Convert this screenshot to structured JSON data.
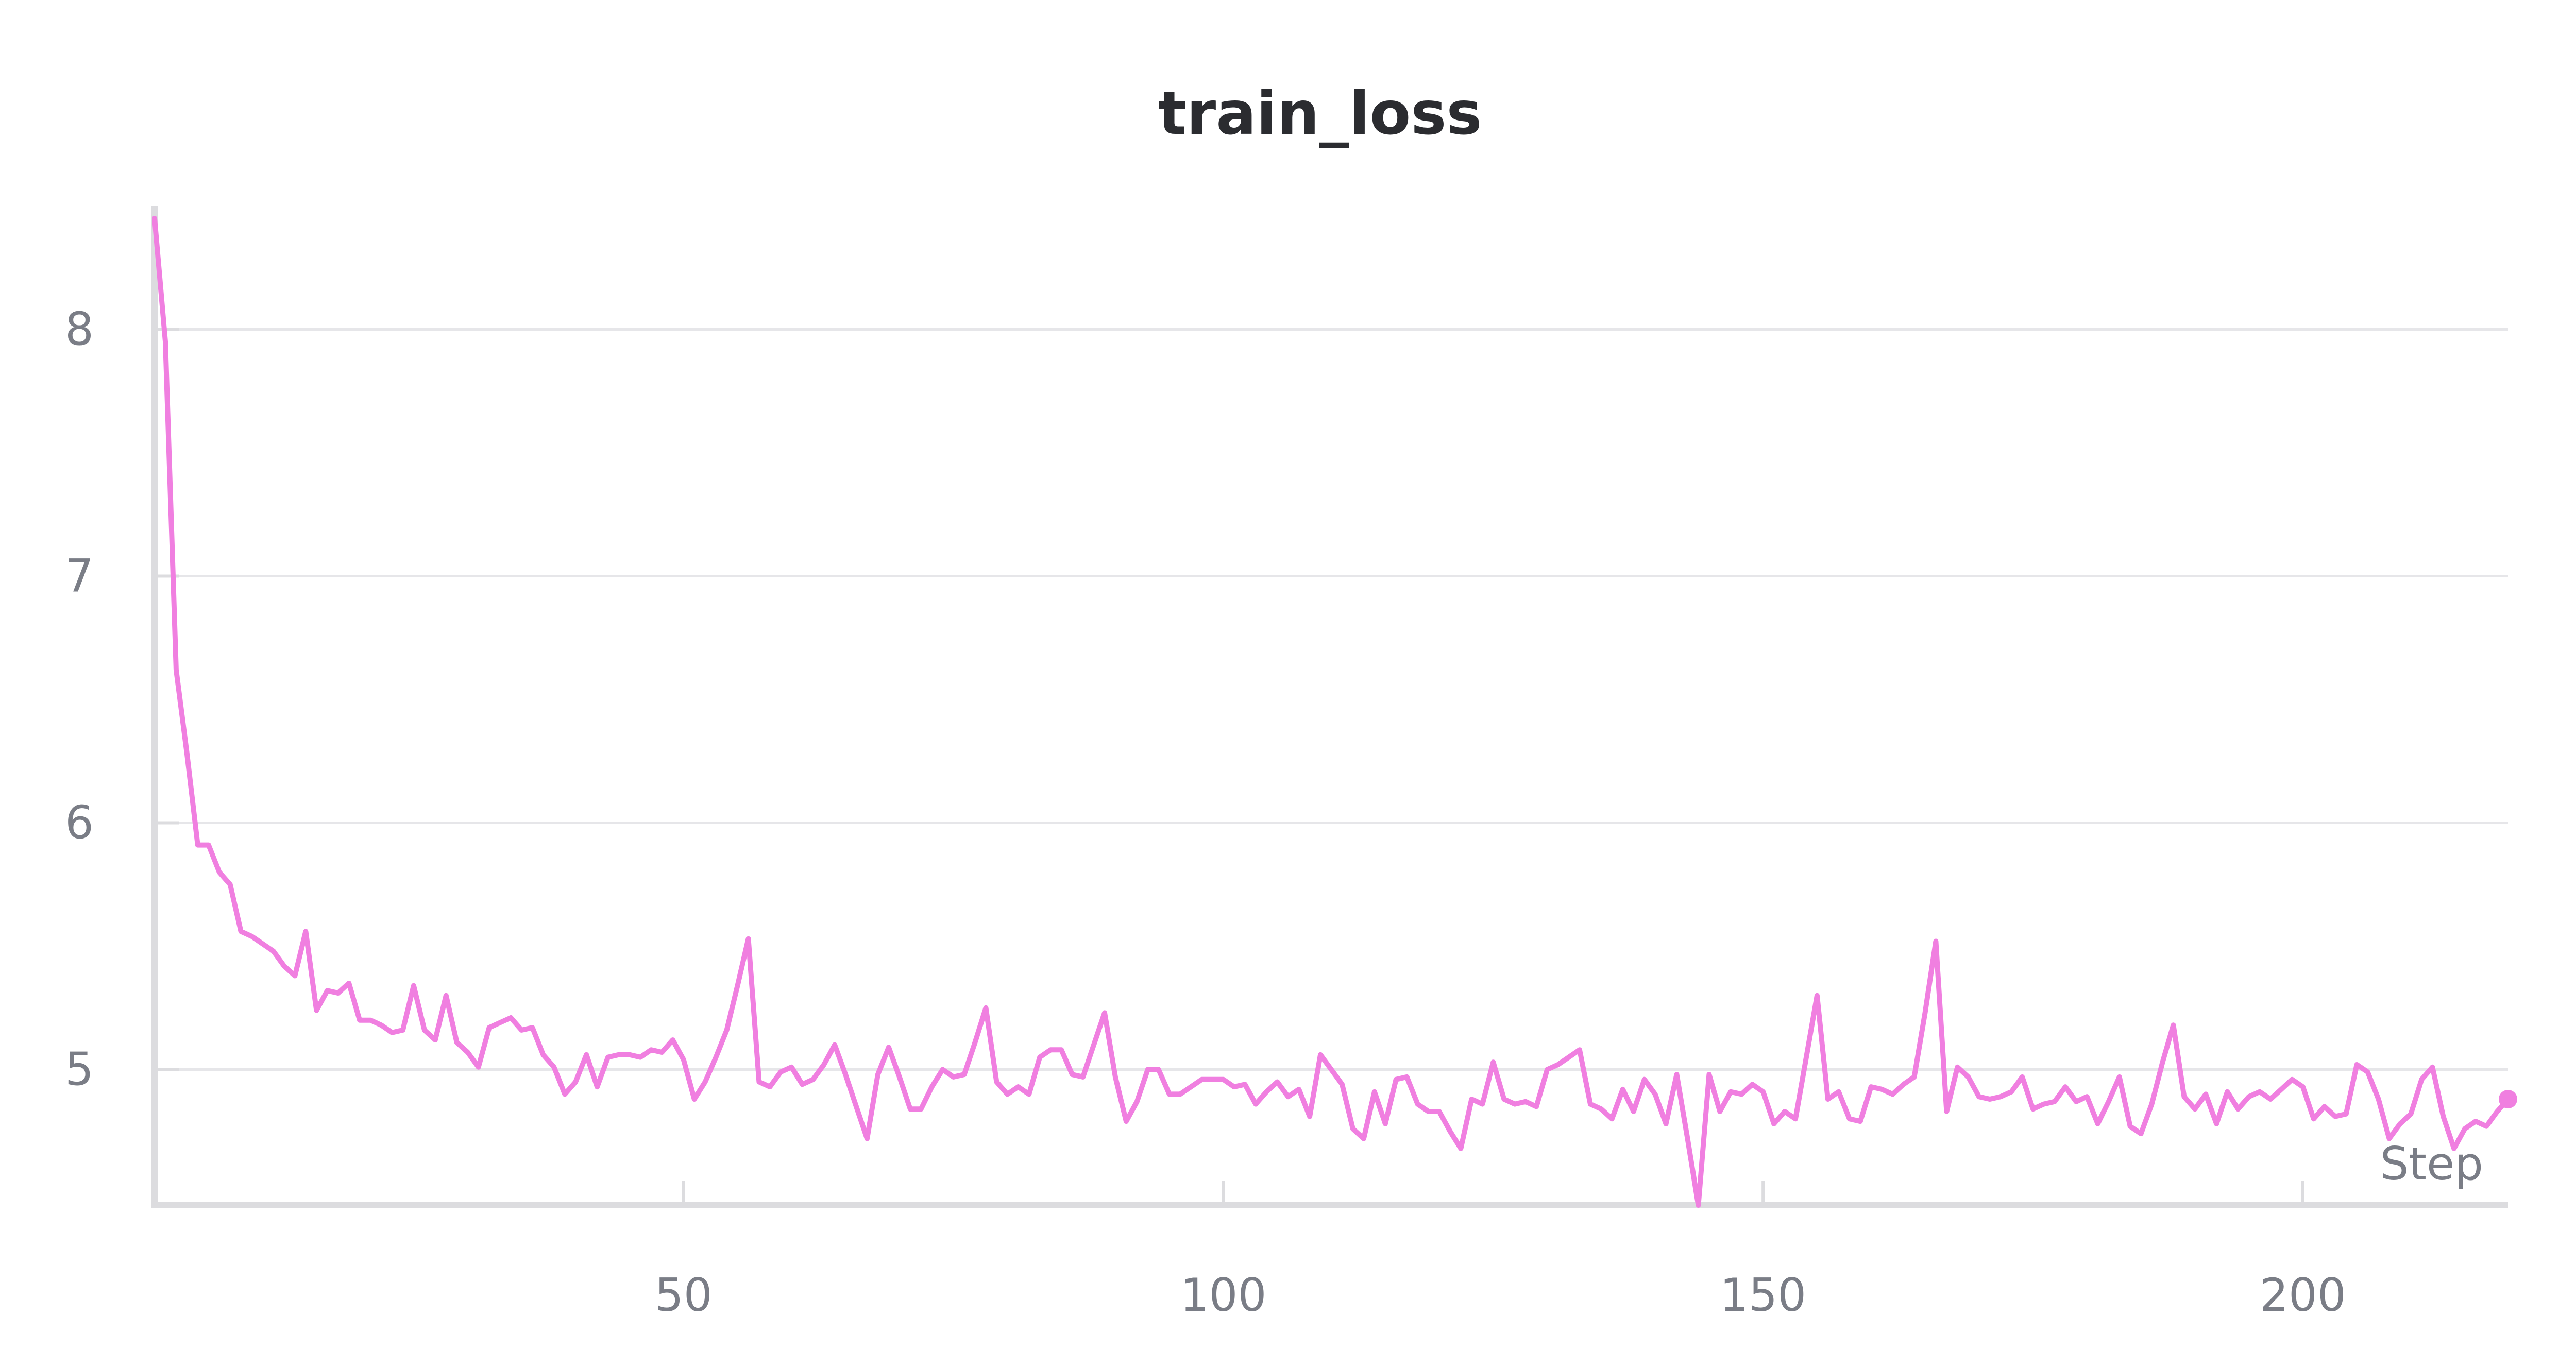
{
  "chart_data": {
    "type": "line",
    "title": "train_loss",
    "xlabel": "Step",
    "ylabel": "",
    "xlim": [
      1,
      219
    ],
    "ylim": [
      4.45,
      8.5
    ],
    "xticks": [
      50,
      100,
      150,
      200
    ],
    "yticks": [
      5,
      6,
      7,
      8
    ],
    "grid": true,
    "legend": "none",
    "series": [
      {
        "color": "#f07fe0",
        "x": [
          1,
          2,
          3,
          4,
          5,
          6,
          7,
          8,
          9,
          10,
          11,
          12,
          13,
          14,
          15,
          16,
          17,
          18,
          19,
          20,
          21,
          22,
          23,
          24,
          25,
          26,
          27,
          28,
          29,
          30,
          31,
          32,
          33,
          34,
          35,
          36,
          37,
          38,
          39,
          40,
          41,
          42,
          43,
          44,
          45,
          46,
          47,
          48,
          49,
          50,
          51,
          52,
          53,
          54,
          55,
          56,
          57,
          58,
          59,
          60,
          61,
          62,
          63,
          64,
          65,
          66,
          67,
          68,
          69,
          70,
          71,
          72,
          73,
          74,
          75,
          76,
          77,
          78,
          79,
          80,
          81,
          82,
          83,
          84,
          85,
          86,
          87,
          88,
          89,
          90,
          91,
          92,
          93,
          94,
          95,
          96,
          97,
          98,
          99,
          100,
          101,
          102,
          103,
          104,
          105,
          106,
          107,
          108,
          109,
          110,
          111,
          112,
          113,
          114,
          115,
          116,
          117,
          118,
          119,
          120,
          121,
          122,
          123,
          124,
          125,
          126,
          127,
          128,
          129,
          130,
          131,
          132,
          133,
          134,
          135,
          136,
          137,
          138,
          139,
          140,
          141,
          142,
          143,
          144,
          145,
          146,
          147,
          148,
          149,
          150,
          151,
          152,
          153,
          154,
          155,
          156,
          157,
          158,
          159,
          160,
          161,
          162,
          163,
          164,
          165,
          166,
          167,
          168,
          169,
          170,
          171,
          172,
          173,
          174,
          175,
          176,
          177,
          178,
          179,
          180,
          181,
          182,
          183,
          184,
          185,
          186,
          187,
          188,
          189,
          190,
          191,
          192,
          193,
          194,
          195,
          196,
          197,
          198,
          199,
          200,
          201,
          202,
          203,
          204,
          205,
          206,
          207,
          208,
          209,
          210,
          211,
          212,
          213,
          214,
          215,
          216,
          217,
          218,
          219
        ],
        "y": [
          8.45,
          7.95,
          6.62,
          6.28,
          5.91,
          5.91,
          5.8,
          5.75,
          5.56,
          5.54,
          5.51,
          5.48,
          5.42,
          5.38,
          5.56,
          5.24,
          5.32,
          5.31,
          5.35,
          5.2,
          5.2,
          5.18,
          5.15,
          5.16,
          5.34,
          5.16,
          5.12,
          5.3,
          5.11,
          5.07,
          5.01,
          5.17,
          5.19,
          5.21,
          5.16,
          5.17,
          5.06,
          5.01,
          4.9,
          4.95,
          5.06,
          4.93,
          5.05,
          5.06,
          5.06,
          5.05,
          5.08,
          5.07,
          5.12,
          5.04,
          4.88,
          4.95,
          5.05,
          5.16,
          5.34,
          5.53,
          4.95,
          4.93,
          4.99,
          5.01,
          4.94,
          4.96,
          5.02,
          5.1,
          4.98,
          4.85,
          4.72,
          4.98,
          5.09,
          4.97,
          4.84,
          4.84,
          4.93,
          5.0,
          4.97,
          4.98,
          5.11,
          5.25,
          4.95,
          4.9,
          4.93,
          4.9,
          5.05,
          5.08,
          5.08,
          4.98,
          4.97,
          5.1,
          5.23,
          4.97,
          4.79,
          4.87,
          5.0,
          5.0,
          4.9,
          4.9,
          4.93,
          4.96,
          4.96,
          4.96,
          4.93,
          4.94,
          4.86,
          4.91,
          4.95,
          4.89,
          4.92,
          4.81,
          5.06,
          5.0,
          4.94,
          4.76,
          4.72,
          4.91,
          4.78,
          4.96,
          4.97,
          4.86,
          4.83,
          4.83,
          4.75,
          4.68,
          4.88,
          4.86,
          5.03,
          4.88,
          4.86,
          4.87,
          4.85,
          5.0,
          5.02,
          5.05,
          5.08,
          4.86,
          4.84,
          4.8,
          4.92,
          4.83,
          4.96,
          4.9,
          4.78,
          4.98,
          4.72,
          4.45,
          4.98,
          4.83,
          4.91,
          4.9,
          4.94,
          4.91,
          4.78,
          4.83,
          4.8,
          5.05,
          5.3,
          4.88,
          4.91,
          4.8,
          4.79,
          4.93,
          4.92,
          4.9,
          4.94,
          4.97,
          5.23,
          5.52,
          4.83,
          5.01,
          4.97,
          4.89,
          4.88,
          4.89,
          4.91,
          4.97,
          4.84,
          4.86,
          4.87,
          4.93,
          4.87,
          4.89,
          4.78,
          4.87,
          4.97,
          4.77,
          4.74,
          4.86,
          5.03,
          5.18,
          4.89,
          4.84,
          4.9,
          4.78,
          4.91,
          4.84,
          4.89,
          4.91,
          4.88,
          4.92,
          4.96,
          4.93,
          4.8,
          4.85,
          4.81,
          4.82,
          5.02,
          4.99,
          4.88,
          4.72,
          4.78,
          4.82,
          4.96,
          5.01,
          4.81,
          4.68,
          4.76,
          4.79,
          4.77,
          4.83,
          4.88
        ]
      }
    ]
  }
}
